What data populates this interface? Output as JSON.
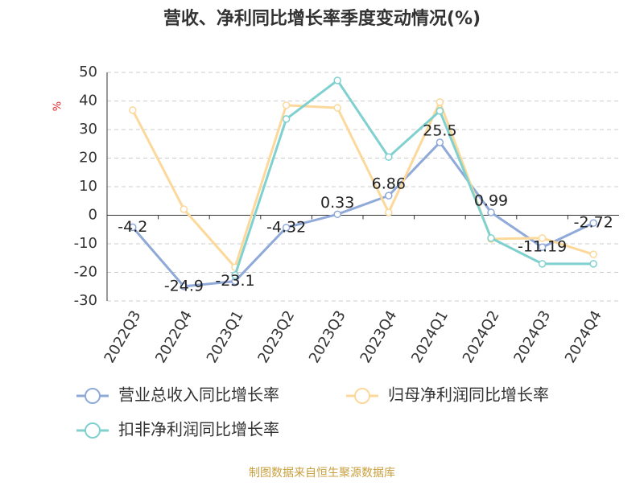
{
  "chart_data": {
    "type": "line",
    "title": "营收、净利同比增长率季度变动情况(%)",
    "y_label": "%",
    "source": "制图数据来自恒生聚源数据库",
    "categories": [
      "2022Q3",
      "2022Q4",
      "2023Q1",
      "2023Q2",
      "2023Q3",
      "2023Q4",
      "2024Q1",
      "2024Q2",
      "2024Q3",
      "2024Q4"
    ],
    "series": [
      {
        "name": "营业总收入同比增长率",
        "color": "#8fa9d8",
        "values": [
          -4.2,
          -24.9,
          -23.1,
          -4.32,
          0.33,
          6.86,
          25.5,
          0.99,
          -11.19,
          -2.72
        ],
        "show_labels": true
      },
      {
        "name": "归母净利润同比增长率",
        "color": "#fcd89a",
        "values": [
          36.8,
          2.1,
          -18.2,
          38.5,
          37.6,
          1.0,
          39.6,
          -8.3,
          -8.0,
          -13.7
        ],
        "show_labels": false
      },
      {
        "name": "扣非净利润同比增长率",
        "color": "#7fd1cf",
        "values": [
          null,
          null,
          -21.0,
          33.7,
          47.2,
          20.4,
          36.5,
          -8.0,
          -17.0,
          -17.0
        ],
        "show_labels": false
      }
    ],
    "ylim": [
      -30,
      50
    ],
    "yticks": [
      -30,
      -20,
      -10,
      0,
      10,
      20,
      30,
      40,
      50
    ],
    "grid": true
  }
}
